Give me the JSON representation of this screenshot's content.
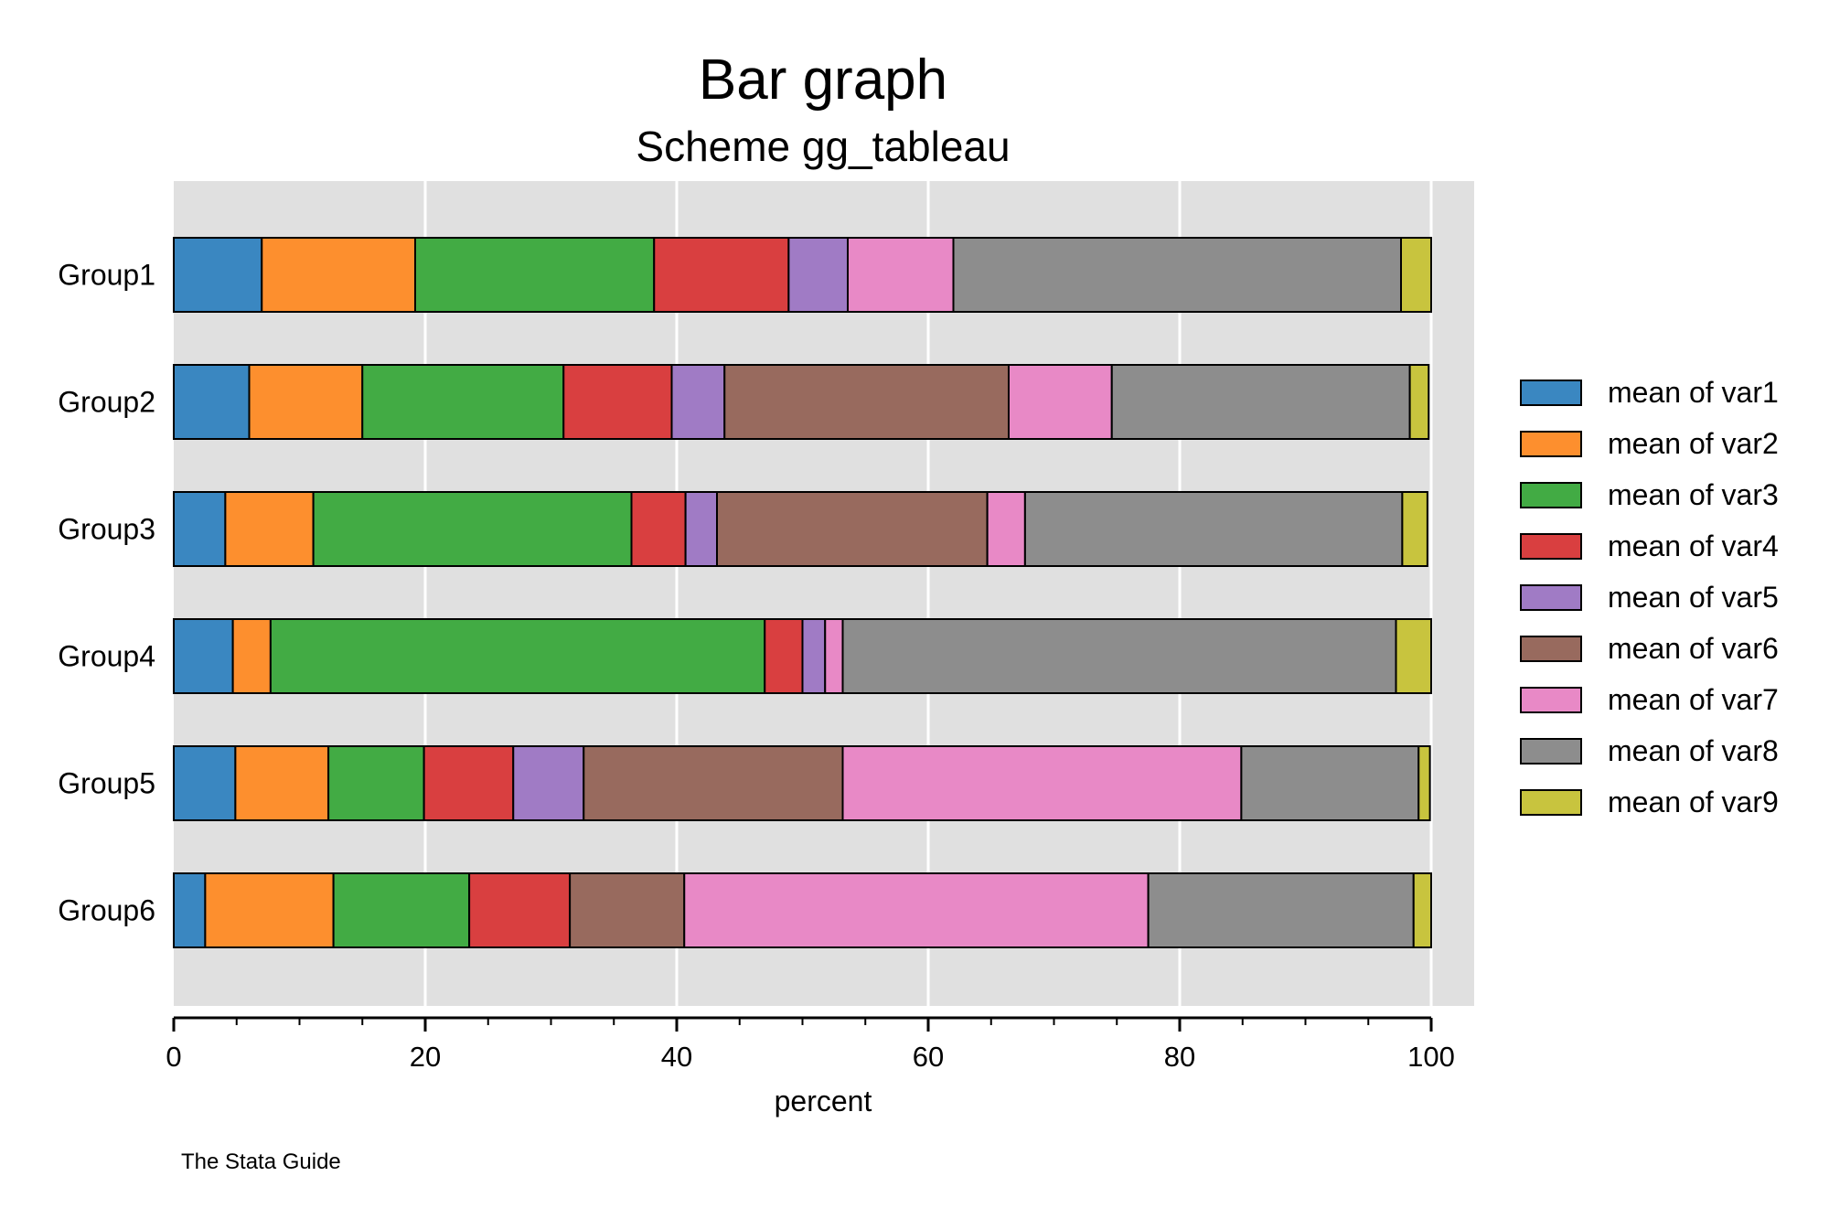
{
  "chart_data": {
    "type": "bar",
    "orientation": "horizontal",
    "stacked": true,
    "title": "Bar graph",
    "subtitle": "Scheme gg_tableau",
    "xlabel": "percent",
    "ylabel": "",
    "xlim": [
      0,
      100
    ],
    "xticks": [
      "0",
      "20",
      "40",
      "60",
      "80",
      "100"
    ],
    "grid": true,
    "legend_position": "right",
    "note": "The Stata Guide",
    "categories": [
      "Group1",
      "Group2",
      "Group3",
      "Group4",
      "Group5",
      "Group6"
    ],
    "series": [
      {
        "name": "mean of var1",
        "color": "#3a87c1",
        "values": [
          7.0,
          6.0,
          4.1,
          4.7,
          4.9,
          2.5
        ]
      },
      {
        "name": "mean of var2",
        "color": "#fd8f2e",
        "values": [
          12.2,
          9.0,
          7.0,
          3.0,
          7.4,
          10.2
        ]
      },
      {
        "name": "mean of var3",
        "color": "#42ab44",
        "values": [
          19.0,
          16.0,
          25.3,
          39.3,
          7.6,
          10.8
        ]
      },
      {
        "name": "mean of var4",
        "color": "#d93f40",
        "values": [
          10.7,
          8.6,
          4.3,
          3.0,
          7.1,
          8.0
        ]
      },
      {
        "name": "mean of var5",
        "color": "#a07bc5",
        "values": [
          4.7,
          4.2,
          2.5,
          1.8,
          5.6,
          0.0
        ]
      },
      {
        "name": "mean of var6",
        "color": "#986a5e",
        "values": [
          0.0,
          22.6,
          21.5,
          0.0,
          20.6,
          9.1
        ]
      },
      {
        "name": "mean of var7",
        "color": "#e889c6",
        "values": [
          8.4,
          8.2,
          3.0,
          1.4,
          31.7,
          36.9
        ]
      },
      {
        "name": "mean of var8",
        "color": "#8d8d8d",
        "values": [
          35.6,
          23.7,
          30.0,
          44.0,
          14.1,
          21.1
        ]
      },
      {
        "name": "mean of var9",
        "color": "#c8c43e",
        "values": [
          2.4,
          1.5,
          2.0,
          2.8,
          0.9,
          1.4
        ]
      }
    ]
  }
}
